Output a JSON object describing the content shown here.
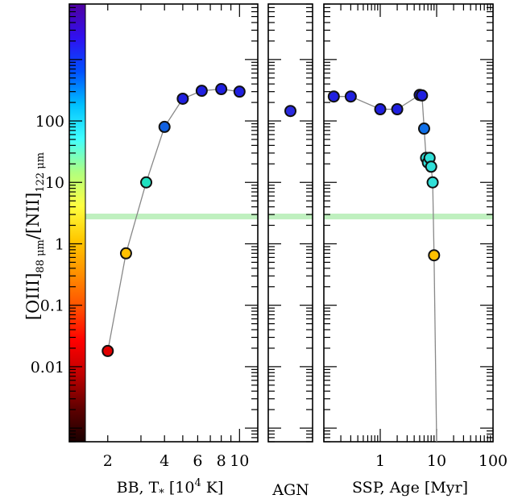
{
  "chart_data": {
    "type": "scatter",
    "yscale": "log",
    "ylim": [
      0.0006,
      8000
    ],
    "y_ticks": [
      {
        "v": 0.01,
        "label": "0.01"
      },
      {
        "v": 0.1,
        "label": "0.1"
      },
      {
        "v": 1,
        "label": "1"
      },
      {
        "v": 10,
        "label": "10"
      },
      {
        "v": 100,
        "label": "100"
      }
    ],
    "ylabel": {
      "bracket_open": "[",
      "ion1": "OIII",
      "sub1": "88 μm",
      "slash": "/[",
      "ion2": "NII",
      "sub2": "122 μm"
    },
    "observed_band": [
      2.5,
      3.1
    ],
    "colorbar": {
      "stops": [
        "#1a0000",
        "#600000",
        "#c00000",
        "#ff0000",
        "#ff5000",
        "#ff9000",
        "#ffc800",
        "#ffff40",
        "#b0ff80",
        "#40ffff",
        "#00c0ff",
        "#0050ff",
        "#3010f0",
        "#5000a0"
      ]
    },
    "panels": [
      {
        "id": "bb",
        "xscale": "log",
        "xlim": [
          1.25,
          12.5
        ],
        "x_ticks": [
          {
            "v": 2,
            "label": "2"
          },
          {
            "v": 4,
            "label": "4"
          },
          {
            "v": 6,
            "label": "6"
          },
          {
            "v": 8,
            "label": "8"
          },
          {
            "v": 10,
            "label": "10"
          }
        ],
        "xlabel": {
          "text": "BB, T",
          "sub": "*",
          "rest": " [10",
          "sup": "4",
          "end": " K]"
        },
        "points": [
          {
            "x": 2,
            "y": 0.018,
            "color": "#e00000"
          },
          {
            "x": 2.5,
            "y": 0.7,
            "color": "#ffc000"
          },
          {
            "x": 3.2,
            "y": 10,
            "color": "#20e0c0"
          },
          {
            "x": 4,
            "y": 80,
            "color": "#1060e0"
          },
          {
            "x": 5,
            "y": 230,
            "color": "#2020e0"
          },
          {
            "x": 6.3,
            "y": 310,
            "color": "#2020e0"
          },
          {
            "x": 8,
            "y": 330,
            "color": "#2020e0"
          },
          {
            "x": 10,
            "y": 300,
            "color": "#2020e0"
          }
        ]
      },
      {
        "id": "agn",
        "xlabel": {
          "text": "AGN"
        },
        "points": [
          {
            "x": 0.5,
            "y": 145,
            "color": "#2a2ae0"
          }
        ]
      },
      {
        "id": "ssp",
        "xscale": "log",
        "xlim": [
          0.1,
          100
        ],
        "x_ticks": [
          {
            "v": 1,
            "label": "1"
          },
          {
            "v": 10,
            "label": "10"
          },
          {
            "v": 100,
            "label": "100"
          }
        ],
        "xlabel": {
          "text": "SSP, Age [Myr]"
        },
        "points": [
          {
            "x": 0.15,
            "y": 250,
            "color": "#2020e0"
          },
          {
            "x": 0.3,
            "y": 250,
            "color": "#2020e0"
          },
          {
            "x": 1,
            "y": 155,
            "color": "#2020e0"
          },
          {
            "x": 2,
            "y": 155,
            "color": "#2020e0"
          },
          {
            "x": 5,
            "y": 265,
            "color": "#2020e0"
          },
          {
            "x": 5.5,
            "y": 260,
            "color": "#2020e0"
          },
          {
            "x": 6,
            "y": 75,
            "color": "#1070e8"
          },
          {
            "x": 6.5,
            "y": 25,
            "color": "#30e0d8"
          },
          {
            "x": 7,
            "y": 21,
            "color": "#30e0d8"
          },
          {
            "x": 7.5,
            "y": 25,
            "color": "#30e0d8"
          },
          {
            "x": 8,
            "y": 18,
            "color": "#30e0d8"
          },
          {
            "x": 8.5,
            "y": 10,
            "color": "#30e0d8"
          },
          {
            "x": 9,
            "y": 0.65,
            "color": "#ffc000"
          }
        ],
        "tail": [
          {
            "x": 9,
            "y": 0.65
          },
          {
            "x": 10,
            "y": 0.0006
          }
        ]
      }
    ]
  }
}
